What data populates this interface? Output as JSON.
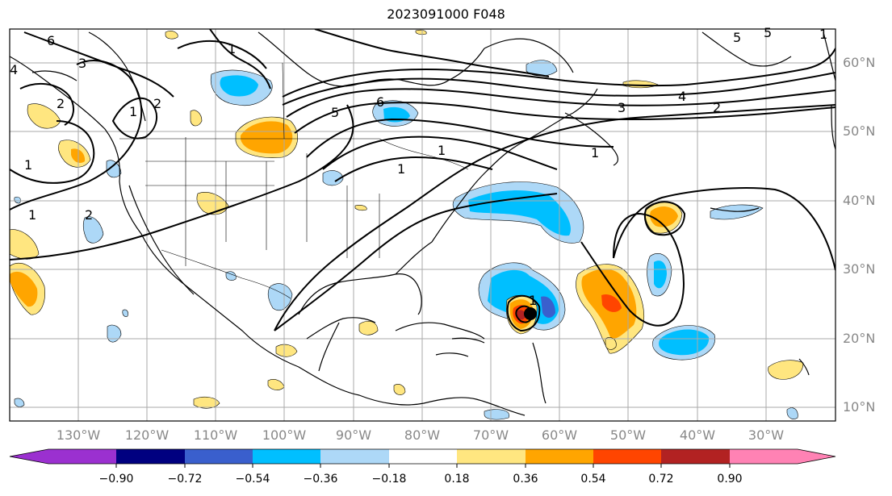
{
  "title": "2023091000 F048",
  "lat_labels": [
    "60°N",
    "50°N",
    "40°N",
    "30°N",
    "20°N",
    "10°N"
  ],
  "lon_labels": [
    "130°W",
    "120°W",
    "110°W",
    "100°W",
    "90°W",
    "80°W",
    "70°W",
    "60°W",
    "50°W",
    "40°W",
    "30°W"
  ],
  "colorbar": {
    "ticks": [
      "−0.90",
      "−0.72",
      "−0.54",
      "−0.36",
      "−0.18",
      "0.18",
      "0.36",
      "0.54",
      "0.72",
      "0.90"
    ],
    "colors": [
      "#9b30d0",
      "#000080",
      "#3a5fcd",
      "#00bfff",
      "#add8f7",
      "#ffffff",
      "#ffe680",
      "#ffa500",
      "#ff4500",
      "#b22222",
      "#ff82b4"
    ]
  },
  "contour_labels": [
    "6",
    "3",
    "5",
    "1",
    "2",
    "1",
    "5",
    "6",
    "5",
    "4",
    "4",
    "3",
    "2",
    "1",
    "1",
    "2",
    "1",
    "1",
    "1",
    "1",
    "2",
    "1"
  ]
}
